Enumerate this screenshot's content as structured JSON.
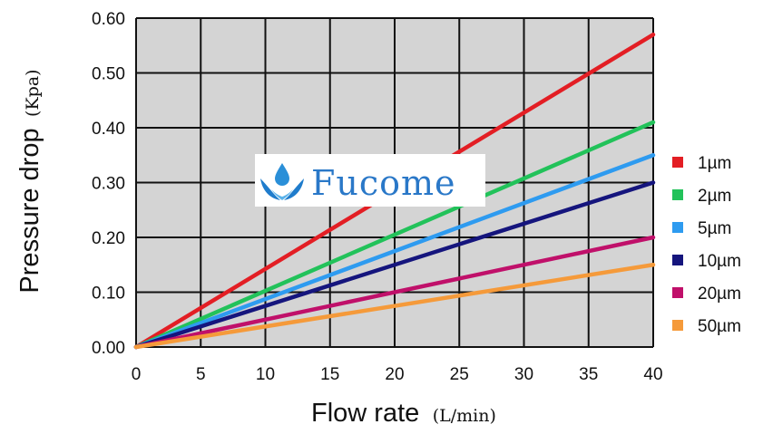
{
  "chart_data": {
    "type": "line",
    "x_label": "Flow rate",
    "x_unit": "(L/min)",
    "y_label": "Pressure drop",
    "y_unit": "(Kpa)",
    "xlim": [
      0,
      40
    ],
    "ylim": [
      0,
      0.6
    ],
    "x_ticks": [
      "0",
      "5",
      "10",
      "15",
      "20",
      "25",
      "30",
      "35",
      "40"
    ],
    "y_ticks": [
      "0.00",
      "0.10",
      "0.20",
      "0.30",
      "0.40",
      "0.50",
      "0.60"
    ],
    "grid": true,
    "legend_position": "right",
    "series": [
      {
        "name": "1µm",
        "color": "#e31e24",
        "x": [
          0,
          40
        ],
        "y": [
          0,
          0.57
        ]
      },
      {
        "name": "2µm",
        "color": "#22c25a",
        "x": [
          0,
          40
        ],
        "y": [
          0,
          0.41
        ]
      },
      {
        "name": "5µm",
        "color": "#2e9bf0",
        "x": [
          0,
          40
        ],
        "y": [
          0,
          0.35
        ]
      },
      {
        "name": "10µm",
        "color": "#15157d",
        "x": [
          0,
          40
        ],
        "y": [
          0,
          0.3
        ]
      },
      {
        "name": "20µm",
        "color": "#c0106a",
        "x": [
          0,
          40
        ],
        "y": [
          0,
          0.2
        ]
      },
      {
        "name": "50µm",
        "color": "#f59a3a",
        "x": [
          0,
          40
        ],
        "y": [
          0,
          0.15
        ]
      }
    ]
  },
  "watermark": {
    "text": "Fucome",
    "icon": "water-drop-leaf-icon",
    "color": "#2a78c8"
  }
}
